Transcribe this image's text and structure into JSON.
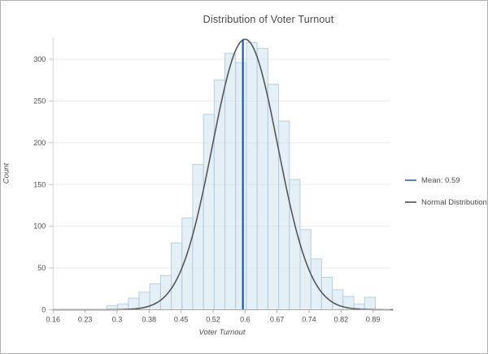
{
  "window": {
    "background": "#ffffff",
    "border_color": "#b0b0b0"
  },
  "chart_data": {
    "type": "bar",
    "subtype": "histogram",
    "title": "Distribution of Voter Turnout",
    "xlabel": "Voter Turnout",
    "ylabel": "Count",
    "x_tick_labels": [
      "0.16",
      "0.23",
      "0.3",
      "0.38",
      "0.45",
      "0.52",
      "0.6",
      "0.67",
      "0.74",
      "0.82",
      "0.89"
    ],
    "x_tick_values": [
      0.16,
      0.2325,
      0.305,
      0.3775,
      0.45,
      0.5225,
      0.595,
      0.6675,
      0.74,
      0.8125,
      0.885
    ],
    "y_ticks": [
      0,
      50,
      100,
      150,
      200,
      250,
      300
    ],
    "xlim": [
      0.16,
      0.93
    ],
    "ylim": [
      0,
      326
    ],
    "grid": "horizontal-only",
    "bin_width": 0.02433,
    "bin_starts": [
      0.2817,
      0.306,
      0.3303,
      0.3547,
      0.379,
      0.4033,
      0.4277,
      0.452,
      0.4763,
      0.5007,
      0.525,
      0.5493,
      0.5737,
      0.598,
      0.6223,
      0.6467,
      0.671,
      0.6953,
      0.7197,
      0.744,
      0.7683,
      0.7927,
      0.817,
      0.8413,
      0.8657
    ],
    "counts": [
      5,
      7,
      14,
      21,
      31,
      41,
      80,
      110,
      174,
      234,
      275,
      307,
      296,
      320,
      313,
      270,
      226,
      156,
      96,
      61,
      39,
      24,
      16,
      7,
      15
    ],
    "normal_curve": {
      "label": "Normal Distribution",
      "mean": 0.595,
      "sd": 0.074,
      "peak_count": 324,
      "color": "#575757"
    },
    "mean_line": {
      "value": 0.59,
      "label": "Mean: 0.59",
      "color": "#1659c2"
    },
    "bar_fill": "#cfe2ee",
    "bar_fill_opacity": 0.55,
    "bar_stroke": "#afccdf",
    "legend": {
      "position": "right",
      "items": [
        {
          "label": "Mean: 0.59",
          "marker_color": "#4d84cd"
        },
        {
          "label": "Normal Distribution",
          "marker_color": "#707070"
        }
      ]
    },
    "colors": {
      "grid": "#eaeaea",
      "axis_spine": "#a8a8a8",
      "y_spine": "#d6d6d6",
      "text": "#4d4d4d"
    }
  }
}
